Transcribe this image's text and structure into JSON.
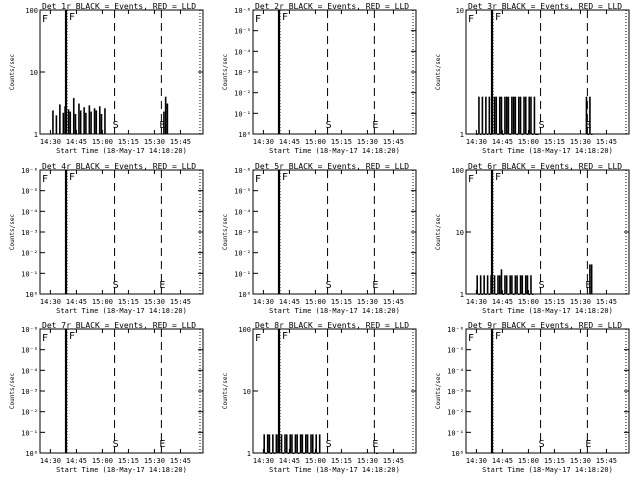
{
  "chart_data": [
    {
      "type": "line",
      "title": "Det 1r BLACK = Events, RED = LLD",
      "ylabel": "Counts/sec",
      "xlabel": "Start Time (18-May-17 14:18:20)",
      "xticks": [
        "14:30",
        "14:45",
        "15:00",
        "15:15",
        "15:30",
        "15:45"
      ],
      "yscale": "log",
      "ylim": [
        1,
        100
      ],
      "yticks": [
        "1",
        "10",
        "100"
      ],
      "events": [
        {
          "t": "14:39",
          "label": "F"
        },
        {
          "t": "15:07",
          "label": "S"
        },
        {
          "t": "15:34",
          "label": "E"
        }
      ],
      "series": [
        {
          "name": "Events",
          "color": "#000000",
          "x": [
            "14:31",
            "14:33",
            "14:35",
            "14:37",
            "14:38",
            "14:40",
            "14:41",
            "14:43",
            "14:44",
            "14:46",
            "14:47",
            "14:49",
            "14:50",
            "14:52",
            "14:53",
            "14:55",
            "14:56",
            "14:58",
            "14:59",
            "15:01",
            "15:35",
            "15:36",
            "15:37"
          ],
          "y": [
            2.4,
            2.0,
            3.0,
            2.2,
            2.8,
            2.5,
            2.3,
            3.8,
            2.1,
            3.1,
            2.4,
            2.7,
            2.2,
            2.9,
            2.3,
            2.6,
            2.4,
            2.8,
            2.1,
            2.6,
            2.3,
            4.0,
            3.1
          ]
        }
      ]
    },
    {
      "type": "line",
      "title": "Det 2r BLACK = Events, RED = LLD",
      "ylabel": "Counts/sec",
      "xlabel": "Start Time (18-May-17 14:18:20)",
      "xticks": [
        "14:30",
        "14:45",
        "15:00",
        "15:15",
        "15:30",
        "15:45"
      ],
      "yscale": "log",
      "ylim": [
        1,
        1000000
      ],
      "yticks": [
        "10⁰",
        "10⁻¹",
        "10⁻²",
        "10⁻³",
        "10⁻⁴",
        "10⁻⁵",
        "10⁻⁶"
      ],
      "events": [
        {
          "t": "14:39",
          "label": "F"
        },
        {
          "t": "15:07",
          "label": "S"
        },
        {
          "t": "15:34",
          "label": "E"
        }
      ],
      "series": [
        {
          "name": "Events",
          "color": "#000000",
          "x": [],
          "y": []
        }
      ]
    },
    {
      "type": "line",
      "title": "Det 3r BLACK = Events, RED = LLD",
      "ylabel": "Counts/sec",
      "xlabel": "Start Time (18-May-17 14:18:20)",
      "xticks": [
        "14:30",
        "14:45",
        "15:00",
        "15:15",
        "15:30",
        "15:45"
      ],
      "yscale": "log",
      "ylim": [
        1,
        10
      ],
      "yticks": [
        "1",
        "10"
      ],
      "events": [
        {
          "t": "14:39",
          "label": "F"
        },
        {
          "t": "15:07",
          "label": "S"
        },
        {
          "t": "15:34",
          "label": "E"
        }
      ],
      "series": [
        {
          "name": "Events",
          "color": "#000000",
          "x": [
            "14:30",
            "14:31",
            "14:32",
            "14:33",
            "14:34",
            "14:35",
            "14:36",
            "14:37",
            "14:38",
            "14:40",
            "14:41",
            "14:42",
            "14:43",
            "14:44",
            "14:45",
            "14:46",
            "14:47",
            "14:48",
            "14:49",
            "14:50",
            "14:51",
            "14:52",
            "14:53",
            "14:54",
            "14:55",
            "14:56",
            "14:57",
            "14:58",
            "14:59",
            "15:00",
            "15:01",
            "15:02",
            "15:03",
            "15:04",
            "15:05",
            "15:33",
            "15:34",
            "15:35",
            "15:36"
          ],
          "y": [
            1,
            2,
            1,
            2,
            1,
            2,
            1,
            2,
            1,
            2,
            2,
            1,
            2,
            2,
            1,
            2,
            2,
            2,
            1,
            2,
            2,
            2,
            1,
            2,
            2,
            1,
            2,
            2,
            1,
            2,
            2,
            1,
            2,
            1,
            1,
            2,
            1,
            2,
            1
          ]
        }
      ]
    },
    {
      "type": "line",
      "title": "Det 4r BLACK = Events, RED = LLD",
      "ylabel": "Counts/sec",
      "xlabel": "Start Time (18-May-17 14:18:20)",
      "xticks": [
        "14:30",
        "14:45",
        "15:00",
        "15:15",
        "15:30",
        "15:45"
      ],
      "yscale": "log",
      "ylim": [
        1,
        1000000
      ],
      "yticks": [
        "10⁰",
        "10⁻¹",
        "10⁻²",
        "10⁻³",
        "10⁻⁴",
        "10⁻⁵",
        "10⁻⁶"
      ],
      "events": [
        {
          "t": "14:39",
          "label": "F"
        },
        {
          "t": "15:07",
          "label": "S"
        },
        {
          "t": "15:34",
          "label": "E"
        }
      ],
      "series": [
        {
          "name": "Events",
          "color": "#000000",
          "x": [],
          "y": []
        }
      ]
    },
    {
      "type": "line",
      "title": "Det 5r BLACK = Events, RED = LLD",
      "ylabel": "Counts/sec",
      "xlabel": "Start Time (18-May-17 14:18:20)",
      "xticks": [
        "14:30",
        "14:45",
        "15:00",
        "15:15",
        "15:30",
        "15:45"
      ],
      "yscale": "log",
      "ylim": [
        1,
        1000000
      ],
      "yticks": [
        "10⁰",
        "10⁻¹",
        "10⁻²",
        "10⁻³",
        "10⁻⁴",
        "10⁻⁵",
        "10⁻⁶"
      ],
      "events": [
        {
          "t": "14:39",
          "label": "F"
        },
        {
          "t": "15:07",
          "label": "S"
        },
        {
          "t": "15:34",
          "label": "E"
        }
      ],
      "series": [
        {
          "name": "Events",
          "color": "#000000",
          "x": [],
          "y": []
        }
      ]
    },
    {
      "type": "line",
      "title": "Det 6r BLACK = Events, RED = LLD",
      "ylabel": "Counts/sec",
      "xlabel": "Start Time (18-May-17 14:18:20)",
      "xticks": [
        "14:30",
        "14:45",
        "15:00",
        "15:15",
        "15:30",
        "15:45"
      ],
      "yscale": "log",
      "ylim": [
        1,
        100
      ],
      "yticks": [
        "1",
        "10",
        "100"
      ],
      "events": [
        {
          "t": "14:39",
          "label": "F"
        },
        {
          "t": "15:07",
          "label": "S"
        },
        {
          "t": "15:34",
          "label": "E"
        }
      ],
      "series": [
        {
          "name": "Events",
          "color": "#000000",
          "x": [
            "14:30",
            "14:31",
            "14:32",
            "14:33",
            "14:34",
            "14:35",
            "14:36",
            "14:37",
            "14:38",
            "14:40",
            "14:41",
            "14:42",
            "14:43",
            "14:44",
            "14:45",
            "14:46",
            "14:47",
            "14:48",
            "14:49",
            "14:50",
            "14:51",
            "14:52",
            "14:53",
            "14:54",
            "14:55",
            "14:56",
            "14:57",
            "14:58",
            "14:59",
            "15:00",
            "15:01",
            "15:02",
            "15:35",
            "15:36"
          ],
          "y": [
            2,
            1,
            2,
            1,
            2,
            1,
            2,
            1,
            2,
            2,
            1,
            2,
            2,
            2.5,
            1,
            2,
            2,
            1,
            2,
            2,
            1,
            2,
            2,
            1,
            2,
            2,
            1,
            2,
            2,
            1,
            2,
            1,
            3,
            3
          ]
        }
      ]
    },
    {
      "type": "line",
      "title": "Det 7r BLACK = Events, RED = LLD",
      "ylabel": "Counts/sec",
      "xlabel": "Start Time (18-May-17 14:18:20)",
      "xticks": [
        "14:30",
        "14:45",
        "15:00",
        "15:15",
        "15:30",
        "15:45"
      ],
      "yscale": "log",
      "ylim": [
        1,
        1000000
      ],
      "yticks": [
        "10⁰",
        "10⁻¹",
        "10⁻²",
        "10⁻³",
        "10⁻⁴",
        "10⁻⁵",
        "10⁻⁶"
      ],
      "events": [
        {
          "t": "14:39",
          "label": "F"
        },
        {
          "t": "15:07",
          "label": "S"
        },
        {
          "t": "15:34",
          "label": "E"
        }
      ],
      "series": [
        {
          "name": "Events",
          "color": "#000000",
          "x": [],
          "y": []
        }
      ]
    },
    {
      "type": "line",
      "title": "Det 8r BLACK = Events, RED = LLD",
      "ylabel": "Counts/sec",
      "xlabel": "Start Time (18-May-17 14:18:20)",
      "xticks": [
        "14:30",
        "14:45",
        "15:00",
        "15:15",
        "15:30",
        "15:45"
      ],
      "yscale": "log",
      "ylim": [
        1,
        100
      ],
      "yticks": [
        "1",
        "10",
        "100"
      ],
      "events": [
        {
          "t": "14:39",
          "label": "F"
        },
        {
          "t": "15:07",
          "label": "S"
        },
        {
          "t": "15:34",
          "label": "E"
        }
      ],
      "series": [
        {
          "name": "Events",
          "color": "#000000",
          "x": [
            "14:30",
            "14:31",
            "14:32",
            "14:33",
            "14:34",
            "14:35",
            "14:36",
            "14:37",
            "14:38",
            "14:40",
            "14:41",
            "14:42",
            "14:43",
            "14:44",
            "14:45",
            "14:46",
            "14:47",
            "14:48",
            "14:49",
            "14:50",
            "14:51",
            "14:52",
            "14:53",
            "14:54",
            "14:55",
            "14:56",
            "14:57",
            "14:58",
            "14:59",
            "15:00",
            "15:01",
            "15:02",
            "15:35"
          ],
          "y": [
            2,
            1,
            2,
            2,
            1,
            2,
            1,
            2,
            2,
            2,
            1,
            2,
            2,
            1,
            2,
            2,
            1,
            2,
            2,
            1,
            2,
            2,
            1,
            2,
            2,
            1,
            2,
            2,
            1,
            2,
            1,
            2,
            1
          ]
        }
      ]
    },
    {
      "type": "line",
      "title": "Det 9r BLACK = Events, RED = LLD",
      "ylabel": "Counts/sec",
      "xlabel": "Start Time (18-May-17 14:18:20)",
      "xticks": [
        "14:30",
        "14:45",
        "15:00",
        "15:15",
        "15:30",
        "15:45"
      ],
      "yscale": "log",
      "ylim": [
        1,
        1000000
      ],
      "yticks": [
        "10⁰",
        "10⁻¹",
        "10⁻²",
        "10⁻³",
        "10⁻⁴",
        "10⁻⁵",
        "10⁻⁶"
      ],
      "events": [
        {
          "t": "14:39",
          "label": "F"
        },
        {
          "t": "15:07",
          "label": "S"
        },
        {
          "t": "15:34",
          "label": "E"
        }
      ],
      "series": [
        {
          "name": "Events",
          "color": "#000000",
          "x": [],
          "y": []
        }
      ]
    }
  ]
}
